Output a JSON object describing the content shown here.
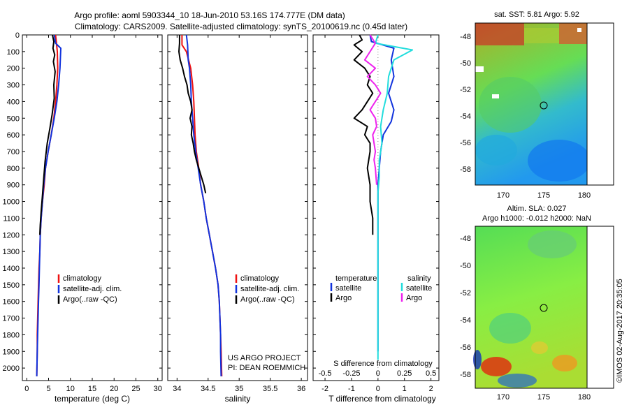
{
  "header": {
    "line1": "Argo profile: aoml 5903344_10 18-Jun-2010 53.16S 174.777E (DM data)",
    "line2": "Climatology: CARS2009. Satellite-adjusted climatology: synTS_20100619.nc (0.45d later)"
  },
  "side_stamp": "©IMOS 02-Aug-2017 20:35:05",
  "project_note": {
    "line1": "US ARGO PROJECT",
    "line2": "PI: DEAN ROEMMICH"
  },
  "colors": {
    "climatology": "#ee1111",
    "satellite": "#1133dd",
    "argo": "#000000",
    "sal_satellite": "#22dddd",
    "sal_argo": "#ee22ee",
    "zero_line": "#888888"
  },
  "chart_data": [
    {
      "type": "line",
      "id": "temperature",
      "xlabel": "temperature (deg C)",
      "ylabel": "",
      "xlim": [
        -1,
        31
      ],
      "ylim": [
        2075,
        0
      ],
      "xticks": [
        "0",
        "5",
        "10",
        "15",
        "20",
        "25",
        "30"
      ],
      "xtick_values": [
        0,
        5,
        10,
        15,
        20,
        25,
        30
      ],
      "yticks": [
        "0",
        "100",
        "200",
        "300",
        "400",
        "500",
        "600",
        "700",
        "800",
        "900",
        "1000",
        "1100",
        "1200",
        "1300",
        "1400",
        "1500",
        "1600",
        "1700",
        "1800",
        "1900",
        "2000"
      ],
      "ytick_values": [
        0,
        100,
        200,
        300,
        400,
        500,
        600,
        700,
        800,
        900,
        1000,
        1100,
        1200,
        1300,
        1400,
        1500,
        1600,
        1700,
        1800,
        1900,
        2000
      ],
      "legend": [
        "climatology",
        "satellite-adj. clim.",
        "Argo(..raw -QC)"
      ],
      "series": [
        {
          "name": "climatology",
          "color_key": "climatology",
          "x": [
            6.6,
            6.8,
            7.0,
            7.1,
            6.9,
            6.6,
            6.2,
            5.6,
            4.9,
            4.3,
            4.0,
            3.6,
            3.3,
            3.1,
            3.0,
            2.8,
            2.7,
            2.6,
            2.5,
            2.4,
            2.4,
            2.3
          ],
          "y": [
            0,
            50,
            100,
            200,
            300,
            400,
            500,
            600,
            700,
            800,
            900,
            1000,
            1100,
            1200,
            1300,
            1400,
            1500,
            1600,
            1700,
            1800,
            1900,
            2050
          ]
        },
        {
          "name": "satellite-adj. clim.",
          "color_key": "satellite",
          "x": [
            6.3,
            6.6,
            7.8,
            7.6,
            7.3,
            6.9,
            6.3,
            5.6,
            4.9,
            4.3,
            3.9,
            3.6,
            3.3,
            3.1,
            3.0,
            2.9,
            2.8,
            2.7,
            2.6,
            2.5,
            2.4,
            2.3
          ],
          "y": [
            0,
            50,
            80,
            200,
            300,
            400,
            500,
            600,
            700,
            800,
            900,
            1000,
            1100,
            1200,
            1300,
            1400,
            1500,
            1600,
            1700,
            1800,
            1900,
            2050
          ]
        },
        {
          "name": "Argo(..raw -QC)",
          "color_key": "argo",
          "x": [
            5.9,
            6.2,
            6.0,
            6.4,
            6.1,
            6.5,
            6.2,
            6.3,
            5.8,
            5.3,
            4.7,
            4.2,
            3.9,
            3.6,
            3.3,
            3.1,
            3.0
          ],
          "y": [
            0,
            40,
            80,
            120,
            160,
            220,
            300,
            380,
            480,
            560,
            650,
            760,
            860,
            960,
            1060,
            1140,
            1200
          ]
        }
      ]
    },
    {
      "type": "line",
      "id": "salinity",
      "xlabel": "salinity",
      "ylabel": "",
      "xlim": [
        33.85,
        36.1
      ],
      "ylim": [
        2075,
        0
      ],
      "xticks": [
        "34",
        "34.5",
        "35",
        "35.5",
        "36"
      ],
      "xtick_values": [
        34,
        34.5,
        35,
        35.5,
        36
      ],
      "legend": [
        "climatology",
        "satellite-adj. clim.",
        "Argo(..raw -QC)"
      ],
      "series": [
        {
          "name": "climatology",
          "color_key": "climatology",
          "x": [
            34.08,
            34.08,
            34.15,
            34.22,
            34.25,
            34.27,
            34.28,
            34.29,
            34.31,
            34.35,
            34.38,
            34.43,
            34.47,
            34.52,
            34.57,
            34.62,
            34.66,
            34.68,
            34.69,
            34.7,
            34.71,
            34.72
          ],
          "y": [
            0,
            60,
            100,
            200,
            300,
            400,
            500,
            600,
            700,
            800,
            900,
            1000,
            1100,
            1200,
            1300,
            1400,
            1500,
            1600,
            1700,
            1800,
            1900,
            2050
          ]
        },
        {
          "name": "satellite-adj. clim.",
          "color_key": "satellite",
          "x": [
            34.15,
            34.17,
            34.18,
            34.2,
            34.22,
            34.23,
            34.25,
            34.27,
            34.3,
            34.34,
            34.38,
            34.43,
            34.47,
            34.52,
            34.57,
            34.62,
            34.66,
            34.68,
            34.69,
            34.7,
            34.7,
            34.71
          ],
          "y": [
            0,
            60,
            150,
            200,
            300,
            400,
            500,
            600,
            700,
            800,
            900,
            1000,
            1100,
            1200,
            1300,
            1400,
            1500,
            1600,
            1700,
            1800,
            1900,
            2050
          ]
        },
        {
          "name": "Argo(..raw -QC)",
          "color_key": "argo",
          "x": [
            34.04,
            34.04,
            34.03,
            34.05,
            34.09,
            34.12,
            34.16,
            34.18,
            34.22,
            34.24,
            34.21,
            34.24,
            34.23,
            34.26,
            34.28,
            34.31,
            34.35,
            34.39,
            34.43,
            34.46
          ],
          "y": [
            0,
            50,
            100,
            150,
            200,
            250,
            300,
            350,
            400,
            450,
            500,
            550,
            600,
            650,
            700,
            750,
            800,
            850,
            900,
            950
          ]
        }
      ]
    },
    {
      "type": "line",
      "id": "difference",
      "xlabel": "T difference from climatology",
      "x2label": "S difference from climatology",
      "ylabel": "",
      "xlim": [
        -2.45,
        2.3
      ],
      "ylim": [
        2075,
        0
      ],
      "xticks": [
        "-2",
        "-1",
        "0",
        "1",
        "2"
      ],
      "xtick_values": [
        -2,
        -1,
        0,
        1,
        2
      ],
      "x2ticks": [
        "-0.5",
        "-0.25",
        "0",
        "0.25",
        "0.5"
      ],
      "x2tick_positions_T": [
        -2,
        -1,
        0,
        1,
        2
      ],
      "legend_left_title": "temperature",
      "legend_right_title": "salinity",
      "legend": [
        "satellite",
        "Argo",
        "satellite",
        "Argo"
      ],
      "series": [
        {
          "name": "satellite",
          "group": "temperature",
          "color_key": "satellite",
          "x": [
            -0.3,
            -0.25,
            0.6,
            0.5,
            0.6,
            0.4,
            0.6,
            0.5,
            0.2,
            0.1,
            0.05,
            0.0,
            0.0,
            0.0,
            0.0,
            0.0,
            0.0,
            0.0,
            0.0,
            0.0,
            0.0,
            0.0
          ],
          "y": [
            0,
            40,
            80,
            150,
            250,
            350,
            450,
            520,
            600,
            700,
            800,
            900,
            1000,
            1100,
            1200,
            1300,
            1400,
            1500,
            1600,
            1700,
            1800,
            1900
          ]
        },
        {
          "name": "Argo",
          "group": "temperature",
          "color_key": "argo",
          "x": [
            -0.7,
            -0.6,
            -0.9,
            -0.6,
            -0.9,
            -0.5,
            -0.3,
            -0.4,
            -0.2,
            -0.4,
            -0.6,
            -0.9,
            -0.4,
            -0.5,
            -0.3,
            -0.3,
            -0.4,
            -0.3,
            -0.3,
            -0.2,
            -0.2
          ],
          "y": [
            0,
            30,
            60,
            100,
            150,
            200,
            250,
            300,
            350,
            400,
            450,
            500,
            550,
            600,
            650,
            700,
            800,
            900,
            1000,
            1100,
            1200
          ]
        },
        {
          "name": "satellite",
          "group": "salinity",
          "color_key": "sal_satellite",
          "x": [
            0.0,
            -0.1,
            1.3,
            0.6,
            0.4,
            0.35,
            0.2,
            0.1,
            0.15,
            0.05,
            0.05,
            0.0,
            0.0,
            0.0,
            0.0,
            0.0,
            0.0,
            0.0,
            0.0,
            0.0,
            0.0,
            0.0
          ],
          "y": [
            0,
            50,
            90,
            150,
            250,
            350,
            450,
            550,
            650,
            750,
            850,
            950,
            1050,
            1150,
            1250,
            1350,
            1450,
            1550,
            1650,
            1750,
            1850,
            1950
          ]
        },
        {
          "name": "Argo",
          "group": "salinity",
          "color_key": "sal_argo",
          "x": [
            -0.3,
            -0.1,
            -0.3,
            -0.5,
            -0.1,
            -0.4,
            -0.1,
            0.1,
            -0.1,
            -0.3,
            -0.1,
            -0.05,
            -0.2,
            -0.15,
            -0.1,
            -0.15,
            -0.1,
            -0.05
          ],
          "y": [
            0,
            50,
            100,
            150,
            200,
            250,
            300,
            350,
            400,
            450,
            500,
            550,
            600,
            650,
            700,
            750,
            800,
            900
          ]
        }
      ]
    }
  ],
  "maps": [
    {
      "title": "sat. SST: 5.81  Argo: 5.92",
      "title2": "",
      "xticks": [
        "170",
        "175",
        "180"
      ],
      "yticks": [
        "-48",
        "-50",
        "-52",
        "-54",
        "-56",
        "-58"
      ],
      "marker": {
        "lon": 174.8,
        "lat": -53.2
      }
    },
    {
      "title": "Altim. SLA: 0.027",
      "title2": "Argo h1000: -0.012 h2000: NaN",
      "xticks": [
        "170",
        "175",
        "180"
      ],
      "yticks": [
        "-48",
        "-50",
        "-52",
        "-54",
        "-56",
        "-58"
      ],
      "marker": {
        "lon": 174.8,
        "lat": -53.2
      }
    }
  ]
}
